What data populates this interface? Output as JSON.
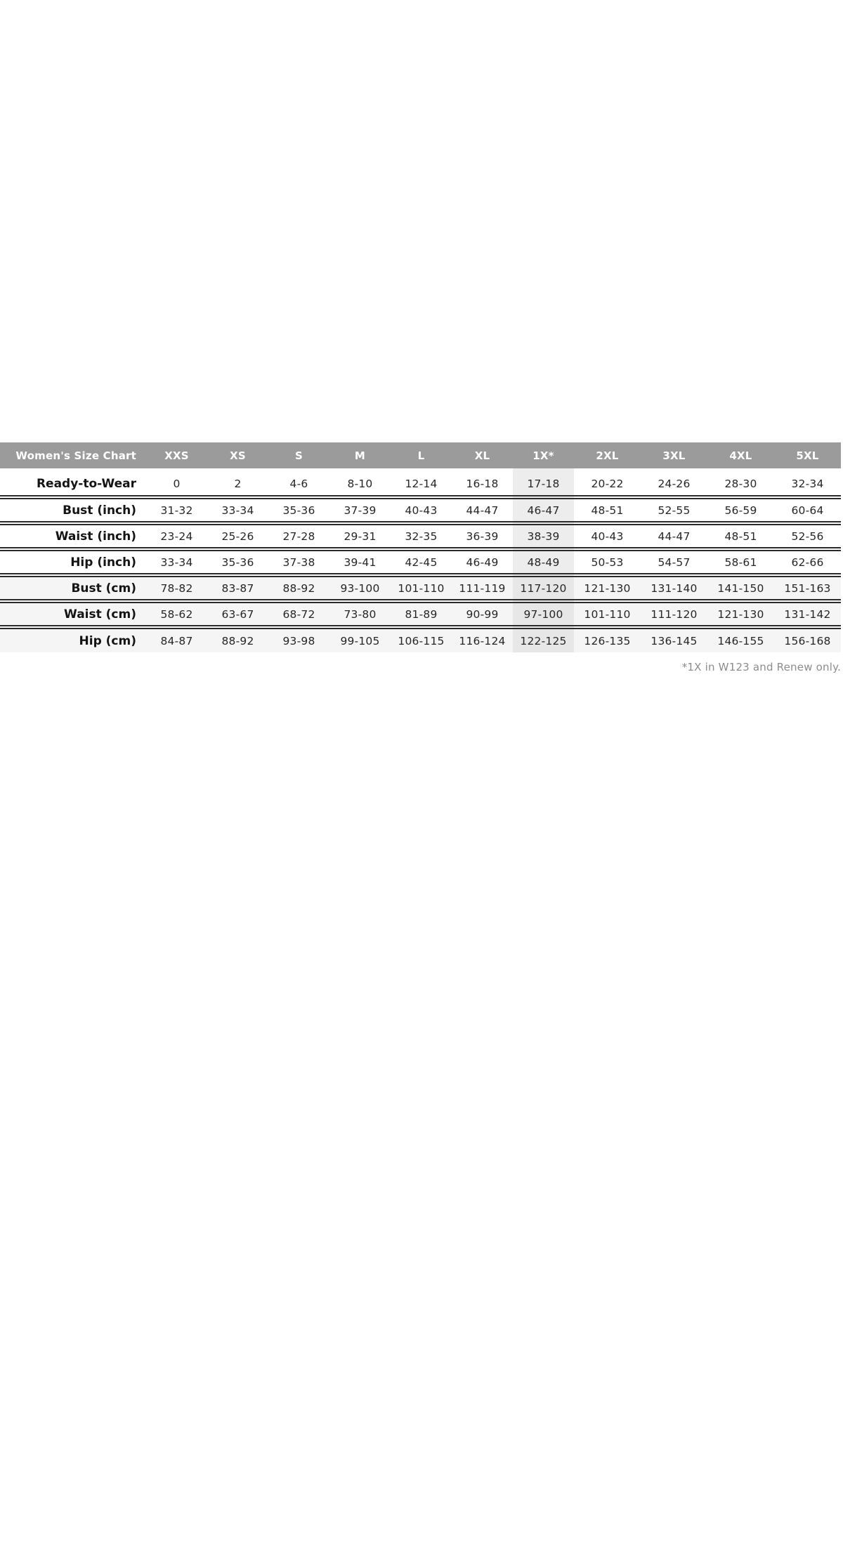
{
  "table": {
    "title": "Women's Size Chart",
    "columns": [
      "XXS",
      "XS",
      "S",
      "M",
      "L",
      "XL",
      "1X*",
      "2XL",
      "3XL",
      "4XL",
      "5XL"
    ],
    "highlighted_column": "1X*",
    "rows": [
      {
        "label": "Ready-to-Wear",
        "values": [
          "0",
          "2",
          "4-6",
          "8-10",
          "12-14",
          "16-18",
          "17-18",
          "20-22",
          "24-26",
          "28-30",
          "32-34"
        ]
      },
      {
        "label": "Bust (inch)",
        "values": [
          "31-32",
          "33-34",
          "35-36",
          "37-39",
          "40-43",
          "44-47",
          "46-47",
          "48-51",
          "52-55",
          "56-59",
          "60-64"
        ]
      },
      {
        "label": "Waist (inch)",
        "values": [
          "23-24",
          "25-26",
          "27-28",
          "29-31",
          "32-35",
          "36-39",
          "38-39",
          "40-43",
          "44-47",
          "48-51",
          "52-56"
        ]
      },
      {
        "label": "Hip (inch)",
        "values": [
          "33-34",
          "35-36",
          "37-38",
          "39-41",
          "42-45",
          "46-49",
          "48-49",
          "50-53",
          "54-57",
          "58-61",
          "62-66"
        ]
      },
      {
        "label": "Bust (cm)",
        "values": [
          "78-82",
          "83-87",
          "88-92",
          "93-100",
          "101-110",
          "111-119",
          "117-120",
          "121-130",
          "131-140",
          "141-150",
          "151-163"
        ]
      },
      {
        "label": "Waist (cm)",
        "values": [
          "58-62",
          "63-67",
          "68-72",
          "73-80",
          "81-89",
          "90-99",
          "97-100",
          "101-110",
          "111-120",
          "121-130",
          "131-142"
        ]
      },
      {
        "label": "Hip (cm)",
        "values": [
          "84-87",
          "88-92",
          "93-98",
          "99-105",
          "106-115",
          "116-124",
          "122-125",
          "126-135",
          "136-145",
          "146-155",
          "156-168"
        ]
      }
    ],
    "footnote": "*1X in W123 and Renew only.",
    "colors": {
      "header_bg": "#9b9b9b",
      "header_text": "#ffffff",
      "shaded_row_bg": "#f5f5f5",
      "highlight_band": "#ededed",
      "highlight_on_shaded_row": "#e7e7e7",
      "row_border": "#2b2b2b",
      "footnote_text": "#8d8d8d"
    }
  }
}
